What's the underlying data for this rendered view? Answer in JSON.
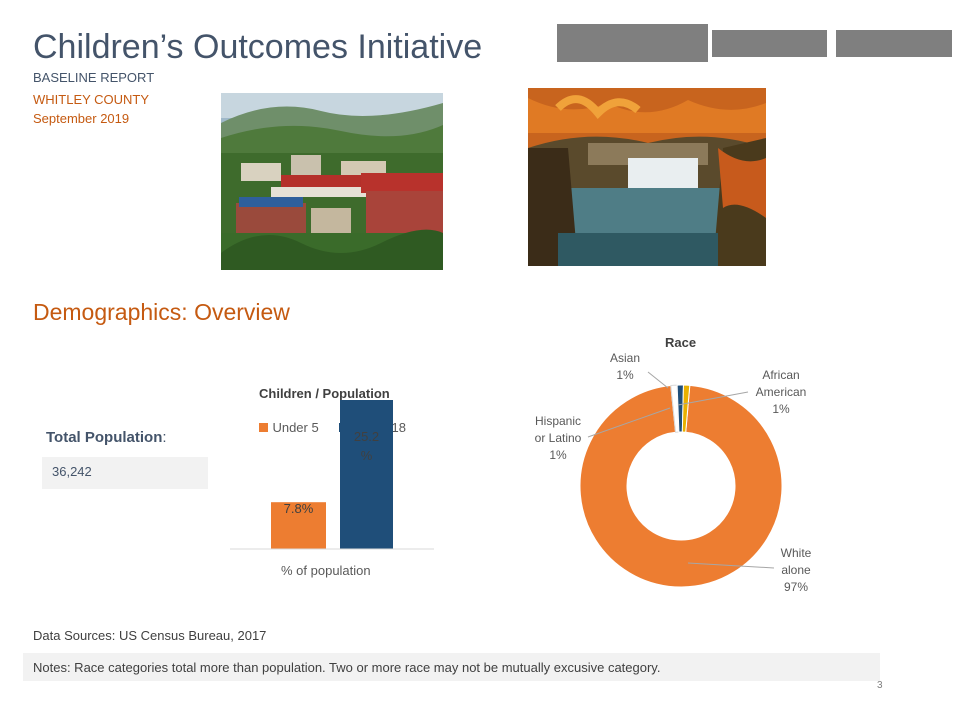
{
  "header": {
    "title": "Children’s Outcomes Initiative",
    "report_type": "BASELINE REPORT",
    "county": "WHITLEY COUNTY",
    "date": "September  2019"
  },
  "photos": {
    "town_photo": "town-photo",
    "waterfall_photo": "waterfall-photo"
  },
  "section_title": "Demographics: Overview",
  "total_population": {
    "label": "Total Population",
    "colon": ":",
    "value": "36,242"
  },
  "chart_data": [
    {
      "type": "bar",
      "title": "Children / Population",
      "categories": [
        "% of population"
      ],
      "series": [
        {
          "name": "Under 5",
          "values": [
            7.8
          ],
          "color": "#ed7d31",
          "label": "7.8%"
        },
        {
          "name": "Under 18",
          "values": [
            25.2
          ],
          "color": "#1f4e79",
          "label_line1": "25.2",
          "label_line2": "%"
        }
      ],
      "xlabel": "% of population",
      "ylim": [
        0,
        30
      ]
    },
    {
      "type": "pie",
      "title": "Race",
      "slices": [
        {
          "name": "White alone",
          "value": 97,
          "color": "#ed7d31",
          "label_lines": [
            "White",
            "alone",
            "97%"
          ]
        },
        {
          "name": "Hispanic or Latino",
          "value": 1,
          "color": "#ffffff",
          "label_lines": [
            "Hispanic",
            "or Latino",
            "1%"
          ]
        },
        {
          "name": "Asian",
          "value": 1,
          "color": "#1f4e79",
          "label_lines": [
            "Asian",
            "1%"
          ]
        },
        {
          "name": "African American",
          "value": 1,
          "color": "#e8b000",
          "label_lines": [
            "African",
            "American",
            "1%"
          ]
        }
      ]
    }
  ],
  "footer": {
    "sources": "Data Sources: US Census Bureau, 2017",
    "notes": "Notes:  Race categories total more than population. Two or more race may not be mutually excusive category.",
    "page_number": "3"
  }
}
